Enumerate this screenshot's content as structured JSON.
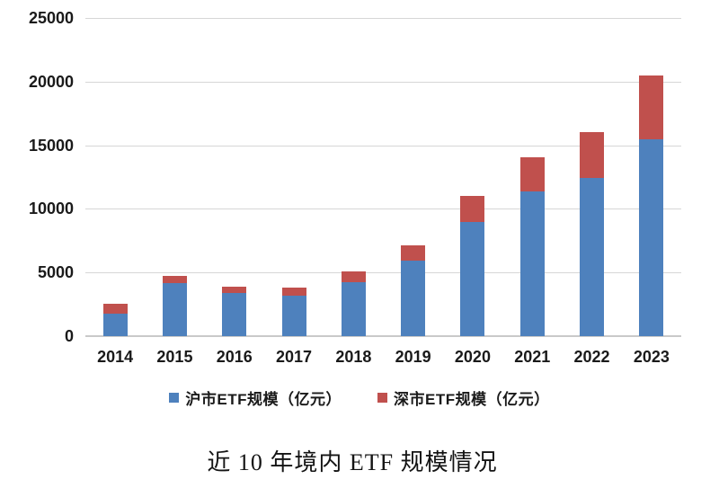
{
  "chart_data": {
    "type": "bar",
    "stacked": true,
    "title": "近 10 年境内 ETF 规模情况",
    "categories": [
      "2014",
      "2015",
      "2016",
      "2017",
      "2018",
      "2019",
      "2020",
      "2021",
      "2022",
      "2023"
    ],
    "series": [
      {
        "name": "沪市ETF规模（亿元）",
        "key": "shanghai-etf",
        "color": "#4E81BD",
        "values": [
          1750,
          4200,
          3400,
          3200,
          4250,
          5950,
          8950,
          11350,
          12400,
          15450
        ]
      },
      {
        "name": "深市ETF规模（亿元）",
        "key": "shenzhen-etf",
        "color": "#C0504D",
        "values": [
          800,
          500,
          500,
          600,
          850,
          1150,
          2050,
          2700,
          3600,
          5050
        ]
      }
    ],
    "ylim": [
      0,
      25000
    ],
    "ytick_interval": 5000,
    "yticks": [
      "0",
      "5000",
      "10000",
      "15000",
      "20000",
      "25000"
    ],
    "grid": true,
    "legend_position": "bottom",
    "colors": {
      "grid": "#D6D6D6",
      "axis": "#C9C9C9",
      "text": "#1A1A1A"
    }
  }
}
